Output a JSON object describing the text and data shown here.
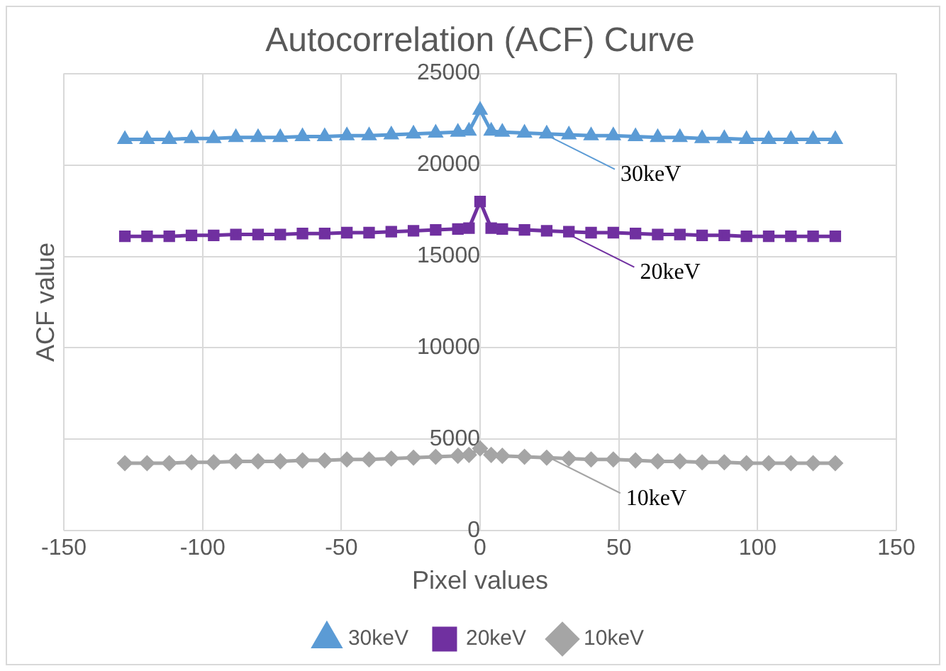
{
  "chart_data": {
    "type": "line",
    "title": "Autocorrelation (ACF) Curve",
    "xlabel": "Pixel values",
    "ylabel": "ACF value",
    "x": [
      -128,
      -120,
      -112,
      -104,
      -96,
      -88,
      -80,
      -72,
      -64,
      -56,
      -48,
      -40,
      -32,
      -24,
      -16,
      -8,
      -4,
      0,
      4,
      8,
      16,
      24,
      32,
      40,
      48,
      56,
      64,
      72,
      80,
      88,
      96,
      104,
      112,
      120,
      128
    ],
    "series": [
      {
        "name": "30keV",
        "color": "#5b9bd5",
        "marker": "triangle",
        "values": [
          21400,
          21400,
          21400,
          21450,
          21450,
          21500,
          21500,
          21500,
          21550,
          21550,
          21600,
          21600,
          21650,
          21700,
          21750,
          21800,
          21850,
          23000,
          21850,
          21800,
          21750,
          21700,
          21650,
          21600,
          21600,
          21550,
          21500,
          21500,
          21450,
          21450,
          21400,
          21400,
          21400,
          21400,
          21400
        ]
      },
      {
        "name": "20keV",
        "color": "#7030a0",
        "marker": "square",
        "values": [
          16100,
          16100,
          16100,
          16150,
          16150,
          16200,
          16200,
          16200,
          16250,
          16250,
          16300,
          16300,
          16350,
          16400,
          16450,
          16500,
          16550,
          18000,
          16550,
          16500,
          16450,
          16400,
          16350,
          16300,
          16300,
          16250,
          16200,
          16200,
          16150,
          16150,
          16100,
          16100,
          16100,
          16100,
          16100
        ]
      },
      {
        "name": "10keV",
        "color": "#a5a5a5",
        "marker": "diamond",
        "values": [
          3700,
          3700,
          3700,
          3750,
          3750,
          3800,
          3800,
          3800,
          3850,
          3850,
          3900,
          3900,
          3950,
          4000,
          4050,
          4100,
          4150,
          4500,
          4150,
          4100,
          4050,
          4000,
          3950,
          3900,
          3900,
          3850,
          3800,
          3800,
          3750,
          3750,
          3700,
          3700,
          3700,
          3700,
          3700
        ]
      }
    ],
    "xlim": [
      -150,
      150
    ],
    "xticks": [
      -150,
      -100,
      -50,
      0,
      50,
      100,
      150
    ],
    "ylim": [
      0,
      25000
    ],
    "yticks": [
      0,
      5000,
      10000,
      15000,
      20000,
      25000
    ],
    "grid": true,
    "legend": "bottom",
    "line_style": "solid",
    "annotations": [
      {
        "text": "30keV",
        "x": 23,
        "y": 21700
      },
      {
        "text": "20keV",
        "x": 30,
        "y": 16350
      },
      {
        "text": "10keV",
        "x": 25,
        "y": 4000
      }
    ]
  }
}
